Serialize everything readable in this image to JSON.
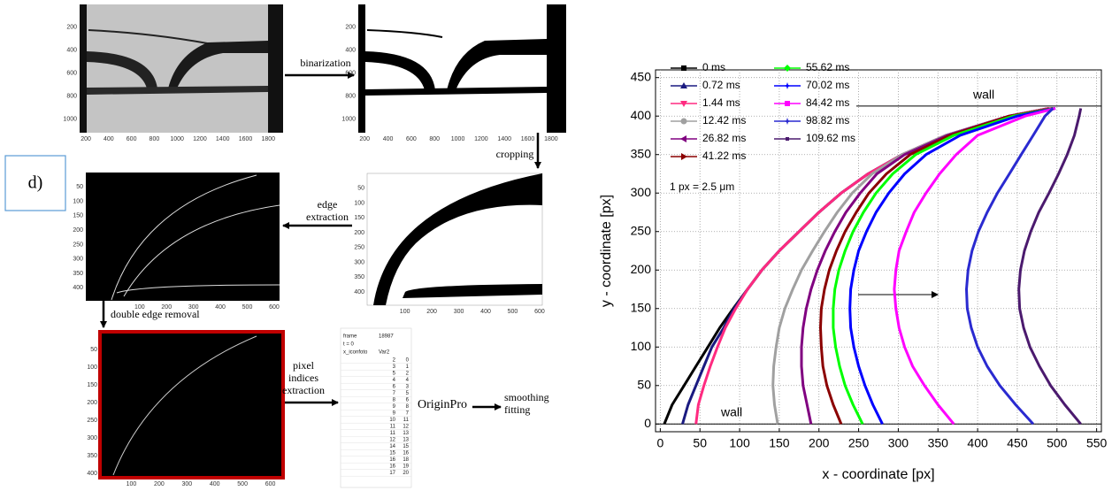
{
  "pipeline": {
    "label": "d)",
    "steps": [
      {
        "lines": [
          "binarization"
        ]
      },
      {
        "lines": [
          "cropping"
        ]
      },
      {
        "lines": [
          "edge",
          "extraction"
        ]
      },
      {
        "lines": [
          "double edge removal"
        ]
      },
      {
        "lines": [
          "pixel",
          "indices",
          "extraction"
        ]
      },
      {
        "lines": [
          "OriginPro"
        ]
      },
      {
        "lines": [
          "smoothing",
          "fitting"
        ]
      }
    ],
    "panels": [
      {
        "xlim": [
          145,
          1930
        ],
        "ylim": [
          0,
          1120
        ],
        "xticks": [
          200,
          400,
          600,
          800,
          1000,
          1200,
          1400,
          1600,
          1800
        ],
        "yticks": [
          200,
          400,
          600,
          800,
          1000
        ]
      },
      {
        "xlim": [
          145,
          1930
        ],
        "ylim": [
          0,
          1120
        ],
        "xticks": [
          200,
          400,
          600,
          800,
          1000,
          1200,
          1400,
          1600,
          1800
        ],
        "yticks": [
          200,
          400,
          600,
          800,
          1000
        ]
      },
      {
        "xlim": [
          -40,
          610
        ],
        "ylim": [
          0,
          445
        ],
        "xticks": [
          100,
          200,
          300,
          400,
          500,
          600
        ],
        "yticks": [
          50,
          100,
          150,
          200,
          250,
          300,
          350,
          400
        ]
      },
      {
        "xlim": [
          -100,
          620
        ],
        "ylim": [
          0,
          445
        ],
        "xticks": [
          100,
          200,
          300,
          400,
          500,
          600
        ],
        "yticks": [
          50,
          100,
          150,
          200,
          250,
          300,
          350,
          400
        ]
      },
      {
        "xlim": [
          -13,
          646
        ],
        "ylim": [
          0,
          412
        ],
        "xticks": [
          100,
          200,
          300,
          400,
          500,
          600
        ],
        "yticks": [
          50,
          100,
          150,
          200,
          250,
          300,
          350,
          400
        ]
      }
    ],
    "table": {
      "header": [
        [
          "frame",
          "18987"
        ],
        [
          "t = 0"
        ],
        [
          "x_iconfoto",
          "Var2"
        ]
      ],
      "rows": [
        [
          2,
          0
        ],
        [
          3,
          1
        ],
        [
          5,
          2
        ],
        [
          4,
          4
        ],
        [
          6,
          3
        ],
        [
          7,
          5
        ],
        [
          8,
          6
        ],
        [
          9,
          8
        ],
        [
          9,
          7
        ],
        [
          10,
          11
        ],
        [
          11,
          12
        ],
        [
          11,
          13
        ],
        [
          12,
          13
        ],
        [
          14,
          15
        ],
        [
          15,
          16
        ],
        [
          16,
          18
        ],
        [
          16,
          19
        ],
        [
          17,
          20
        ]
      ]
    }
  },
  "chart_data": {
    "type": "line",
    "xlabel": "x - coordinate [px]",
    "ylabel": "y - coordinate [px]",
    "note": "1 px = 2.5 μm",
    "walls": [
      {
        "label": "wall",
        "y": 413
      },
      {
        "label": "wall",
        "y": 0
      }
    ],
    "xlim": [
      -6,
      556
    ],
    "ylim": [
      -10,
      460
    ],
    "xticks": [
      0,
      50,
      100,
      150,
      200,
      250,
      300,
      350,
      400,
      450,
      500,
      550
    ],
    "yticks": [
      0,
      50,
      100,
      150,
      200,
      250,
      300,
      350,
      400,
      450
    ],
    "grid": true,
    "y": [
      0,
      25,
      50,
      75,
      100,
      125,
      150,
      175,
      200,
      225,
      250,
      275,
      300,
      325,
      350,
      375,
      400,
      410
    ],
    "series": [
      {
        "name": "0 ms",
        "color": "#000000",
        "x": [
          5,
          15,
          30,
          45,
          60,
          75,
          92,
          110,
          128,
          150,
          175,
          200,
          228,
          262,
          305,
          360,
          440,
          490
        ]
      },
      {
        "name": "0.72 ms",
        "color": "#1a1a80",
        "x": [
          28,
          35,
          45,
          55,
          65,
          80,
          93,
          110,
          128,
          150,
          175,
          200,
          228,
          262,
          305,
          360,
          440,
          490
        ]
      },
      {
        "name": "1.44 ms",
        "color": "#ff2a80",
        "x": [
          45,
          48,
          55,
          63,
          72,
          82,
          95,
          110,
          128,
          150,
          175,
          200,
          228,
          262,
          305,
          360,
          440,
          490
        ]
      },
      {
        "name": "12.42 ms",
        "color": "#a0a0a0",
        "x": [
          148,
          144,
          142,
          143,
          146,
          150,
          157,
          167,
          178,
          192,
          207,
          223,
          242,
          267,
          305,
          360,
          440,
          495
        ]
      },
      {
        "name": "26.82 ms",
        "color": "#800080",
        "x": [
          190,
          185,
          180,
          178,
          178,
          180,
          184,
          190,
          198,
          208,
          220,
          234,
          252,
          273,
          308,
          362,
          440,
          495
        ]
      },
      {
        "name": "41.22 ms",
        "color": "#8b0000",
        "x": [
          228,
          218,
          210,
          205,
          203,
          202,
          203,
          207,
          213,
          222,
          233,
          247,
          263,
          285,
          315,
          365,
          440,
          495
        ]
      },
      {
        "name": "55.62 ms",
        "color": "#00ff00",
        "x": [
          255,
          243,
          233,
          226,
          221,
          218,
          218,
          220,
          225,
          233,
          243,
          256,
          272,
          293,
          322,
          370,
          445,
          497
        ]
      },
      {
        "name": "70.02 ms",
        "color": "#0000ff",
        "x": [
          280,
          268,
          258,
          250,
          244,
          240,
          239,
          240,
          244,
          250,
          260,
          272,
          288,
          308,
          335,
          378,
          450,
          498
        ]
      },
      {
        "name": "84.42 ms",
        "color": "#ff00ff",
        "x": [
          370,
          350,
          333,
          318,
          308,
          301,
          297,
          295,
          297,
          301,
          310,
          320,
          335,
          352,
          373,
          400,
          460,
          498
        ]
      },
      {
        "name": "98.82 ms",
        "color": "#2a2ad0",
        "x": [
          470,
          448,
          428,
          412,
          400,
          392,
          387,
          386,
          388,
          393,
          401,
          412,
          425,
          440,
          455,
          470,
          485,
          495
        ]
      },
      {
        "name": "109.62 ms",
        "color": "#4b1a6e",
        "x": [
          530,
          510,
          492,
          478,
          466,
          458,
          453,
          452,
          454,
          459,
          467,
          477,
          490,
          502,
          513,
          522,
          528,
          530
        ]
      }
    ]
  }
}
